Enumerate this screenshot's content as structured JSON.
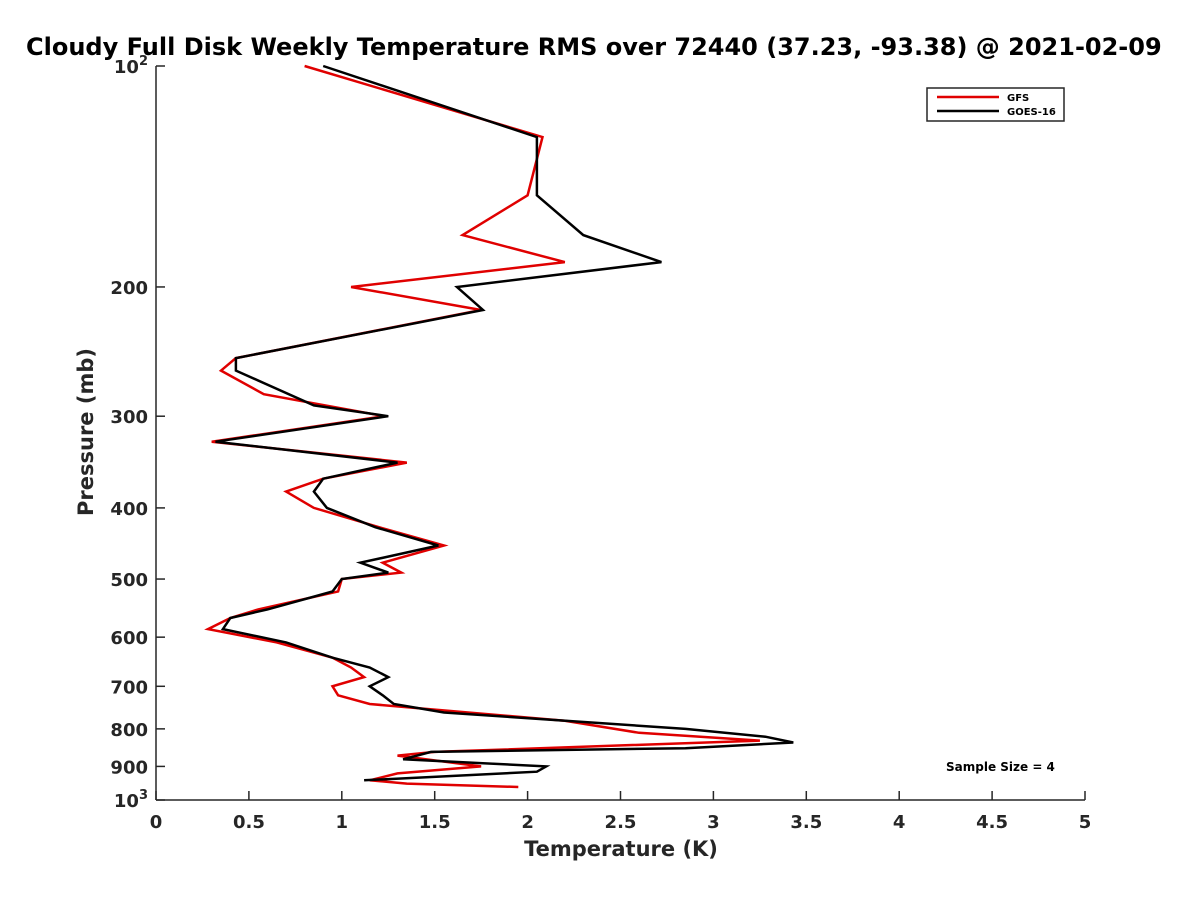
{
  "chart_data": {
    "type": "line",
    "title": "Cloudy Full Disk Weekly Temperature RMS over 72440 (37.23, -93.38) @ 2021-02-09",
    "xlabel": "Temperature (K)",
    "ylabel": "Pressure (mb)",
    "xlim": [
      0,
      5
    ],
    "ylim": [
      1000,
      100
    ],
    "yscale": "log",
    "y_reversed": true,
    "grid": false,
    "legend_position": "top-right",
    "x_ticks": [
      0,
      0.5,
      1,
      1.5,
      2,
      2.5,
      3,
      3.5,
      4,
      4.5,
      5
    ],
    "x_tick_labels": [
      "0",
      "0.5",
      "1",
      "1.5",
      "2",
      "2.5",
      "3",
      "3.5",
      "4",
      "4.5",
      "5"
    ],
    "y_ticks": [
      {
        "value": 100,
        "base": "10",
        "exp": "2"
      },
      {
        "value": 200,
        "base": "200",
        "exp": ""
      },
      {
        "value": 300,
        "base": "300",
        "exp": ""
      },
      {
        "value": 400,
        "base": "400",
        "exp": ""
      },
      {
        "value": 500,
        "base": "500",
        "exp": ""
      },
      {
        "value": 600,
        "base": "600",
        "exp": ""
      },
      {
        "value": 700,
        "base": "700",
        "exp": ""
      },
      {
        "value": 800,
        "base": "800",
        "exp": ""
      },
      {
        "value": 900,
        "base": "900",
        "exp": ""
      },
      {
        "value": 1000,
        "base": "10",
        "exp": "3"
      }
    ],
    "annotation": "Sample Size = 4",
    "series": [
      {
        "name": "GFS",
        "color": "#e00000",
        "points": [
          [
            0.8,
            100
          ],
          [
            2.08,
            125
          ],
          [
            2.0,
            150
          ],
          [
            1.65,
            170
          ],
          [
            2.2,
            185
          ],
          [
            1.05,
            200
          ],
          [
            1.75,
            215
          ],
          [
            0.43,
            250
          ],
          [
            0.35,
            260
          ],
          [
            0.58,
            280
          ],
          [
            1.23,
            300
          ],
          [
            0.3,
            325
          ],
          [
            1.35,
            347
          ],
          [
            0.9,
            365
          ],
          [
            0.7,
            380
          ],
          [
            0.85,
            400
          ],
          [
            1.2,
            425
          ],
          [
            1.55,
            450
          ],
          [
            1.22,
            475
          ],
          [
            1.32,
            490
          ],
          [
            1.0,
            500
          ],
          [
            0.98,
            520
          ],
          [
            0.55,
            550
          ],
          [
            0.4,
            565
          ],
          [
            0.28,
            585
          ],
          [
            0.65,
            610
          ],
          [
            0.95,
            640
          ],
          [
            1.05,
            660
          ],
          [
            1.12,
            680
          ],
          [
            0.95,
            700
          ],
          [
            0.98,
            720
          ],
          [
            1.15,
            740
          ],
          [
            2.2,
            780
          ],
          [
            2.6,
            810
          ],
          [
            3.25,
            830
          ],
          [
            1.5,
            860
          ],
          [
            1.3,
            870
          ],
          [
            1.75,
            900
          ],
          [
            1.3,
            920
          ],
          [
            1.15,
            940
          ],
          [
            1.35,
            950
          ],
          [
            1.95,
            960
          ]
        ]
      },
      {
        "name": "GOES-16",
        "color": "#000000",
        "points": [
          [
            0.9,
            100
          ],
          [
            2.05,
            125
          ],
          [
            2.05,
            150
          ],
          [
            2.3,
            170
          ],
          [
            2.72,
            185
          ],
          [
            1.62,
            200
          ],
          [
            1.76,
            215
          ],
          [
            0.43,
            250
          ],
          [
            0.43,
            260
          ],
          [
            0.85,
            290
          ],
          [
            1.25,
            300
          ],
          [
            0.32,
            325
          ],
          [
            1.3,
            347
          ],
          [
            0.9,
            365
          ],
          [
            0.85,
            380
          ],
          [
            0.92,
            400
          ],
          [
            1.18,
            425
          ],
          [
            1.52,
            450
          ],
          [
            1.1,
            475
          ],
          [
            1.25,
            490
          ],
          [
            1.0,
            500
          ],
          [
            0.95,
            520
          ],
          [
            0.6,
            550
          ],
          [
            0.4,
            565
          ],
          [
            0.36,
            585
          ],
          [
            0.7,
            610
          ],
          [
            0.95,
            640
          ],
          [
            1.15,
            660
          ],
          [
            1.25,
            680
          ],
          [
            1.15,
            700
          ],
          [
            1.22,
            720
          ],
          [
            1.28,
            740
          ],
          [
            1.55,
            760
          ],
          [
            2.85,
            800
          ],
          [
            3.28,
            820
          ],
          [
            3.43,
            835
          ],
          [
            2.85,
            850
          ],
          [
            1.48,
            860
          ],
          [
            1.33,
            880
          ],
          [
            2.1,
            900
          ],
          [
            2.05,
            915
          ],
          [
            1.12,
            940
          ]
        ]
      }
    ]
  }
}
